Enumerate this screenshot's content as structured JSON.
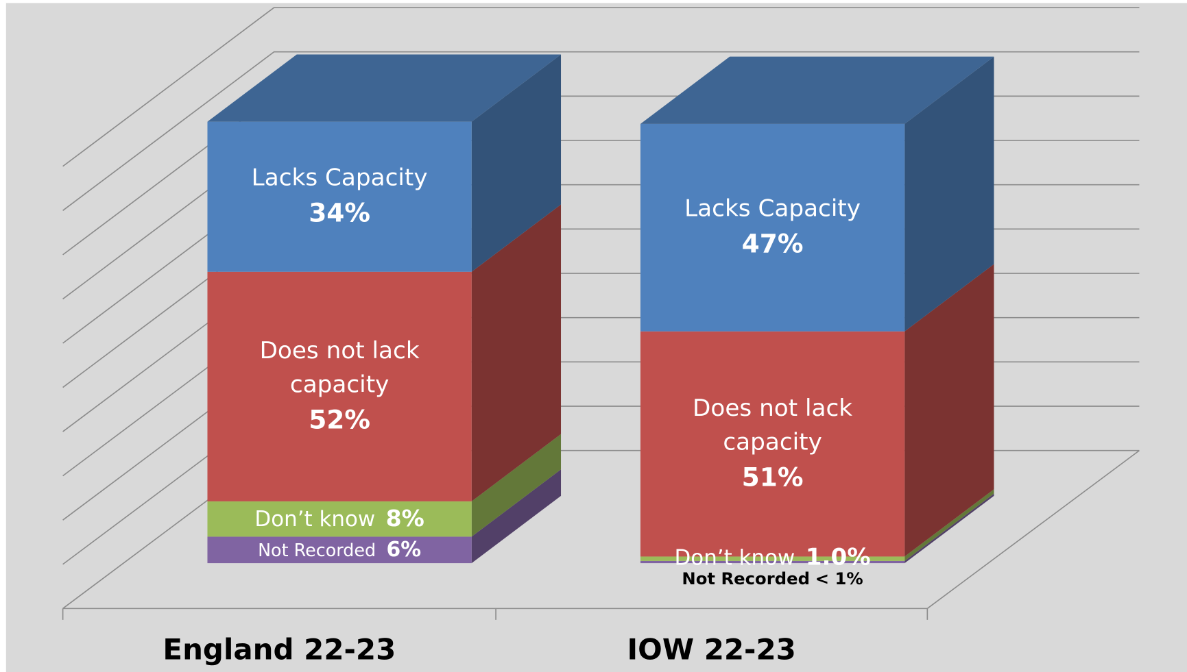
{
  "chart_data": {
    "type": "bar",
    "stacked": true,
    "categories": [
      "England 22-23",
      "IOW 22-23"
    ],
    "series": [
      {
        "name": "Not Recorded",
        "color": "#8064a2",
        "values": [
          6,
          0.5
        ],
        "value_labels": [
          "6%",
          "< 1%"
        ]
      },
      {
        "name": "Don’t know",
        "color": "#9bbb59",
        "values": [
          8,
          1.0
        ],
        "value_labels": [
          "8%",
          "1.0%"
        ]
      },
      {
        "name": "Does not lack capacity",
        "color": "#c0504d",
        "values": [
          52,
          51
        ],
        "value_labels": [
          "52%",
          "51%"
        ]
      },
      {
        "name": "Lacks Capacity",
        "color": "#4f81bd",
        "values": [
          34,
          47
        ],
        "value_labels": [
          "34%",
          "47%"
        ]
      }
    ],
    "ylim": [
      0,
      100
    ],
    "yticks": [
      0,
      10,
      20,
      30,
      40,
      50,
      60,
      70,
      80,
      90,
      100
    ],
    "grid": true
  }
}
